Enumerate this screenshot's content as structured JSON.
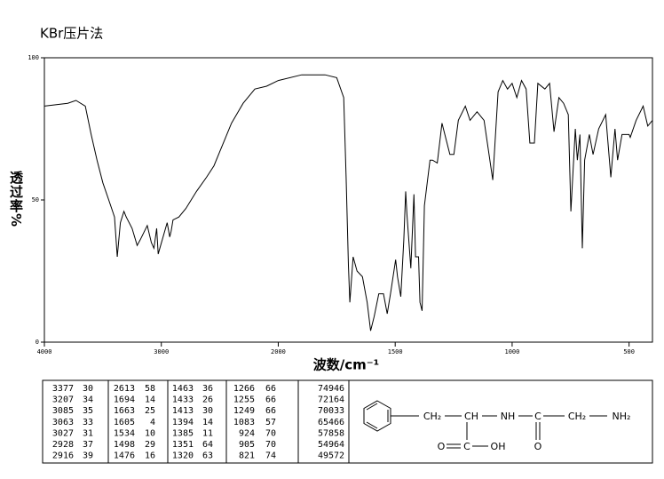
{
  "chart_data": {
    "type": "line",
    "title": "KBr压片法",
    "x_label": "波数/cm⁻¹",
    "y_label": "透过率%",
    "color": "#000000",
    "xlim": [
      4000,
      400
    ],
    "xticks": [
      4000,
      3000,
      2000,
      1500,
      1000,
      500
    ],
    "ylim": [
      0,
      100
    ],
    "yticks": [
      0,
      50,
      100
    ],
    "x": [
      4000,
      3800,
      3730,
      3650,
      3600,
      3550,
      3500,
      3450,
      3400,
      3377,
      3350,
      3320,
      3300,
      3250,
      3207,
      3180,
      3120,
      3085,
      3063,
      3040,
      3027,
      2950,
      2928,
      2916,
      2900,
      2850,
      2790,
      2700,
      2613,
      2550,
      2500,
      2400,
      2300,
      2200,
      2100,
      2000,
      1900,
      1800,
      1750,
      1720,
      1710,
      1700,
      1694,
      1680,
      1663,
      1640,
      1620,
      1605,
      1590,
      1570,
      1550,
      1534,
      1520,
      1498,
      1490,
      1476,
      1463,
      1455,
      1450,
      1433,
      1420,
      1413,
      1400,
      1394,
      1385,
      1375,
      1351,
      1340,
      1320,
      1300,
      1266,
      1255,
      1249,
      1230,
      1200,
      1180,
      1150,
      1120,
      1083,
      1060,
      1040,
      1020,
      1000,
      980,
      960,
      940,
      924,
      905,
      890,
      860,
      840,
      821,
      800,
      780,
      760,
      749,
      730,
      721,
      710,
      700,
      690,
      670,
      654,
      630,
      600,
      578,
      560,
      549,
      530,
      500,
      495,
      470,
      440,
      420,
      400
    ],
    "values": [
      83,
      84,
      85,
      83,
      73,
      64,
      56,
      50,
      44,
      30,
      42,
      46,
      44,
      40,
      34,
      36,
      41,
      35,
      33,
      40,
      31,
      42,
      37,
      39,
      43,
      44,
      47,
      53,
      58,
      62,
      67,
      77,
      84,
      89,
      90,
      92,
      94,
      94,
      93,
      86,
      58,
      27,
      14,
      30,
      25,
      23,
      14,
      4,
      9,
      17,
      17,
      10,
      17,
      29,
      23,
      16,
      36,
      53,
      45,
      26,
      52,
      30,
      30,
      14,
      11,
      48,
      64,
      64,
      63,
      77,
      66,
      66,
      66,
      78,
      83,
      78,
      81,
      78,
      57,
      88,
      92,
      89,
      91,
      86,
      92,
      89,
      70,
      70,
      91,
      89,
      91,
      74,
      86,
      84,
      80,
      46,
      75,
      64,
      73,
      33,
      64,
      73,
      66,
      75,
      80,
      58,
      75,
      64,
      73,
      73,
      72,
      78,
      83,
      76,
      78
    ],
    "peak_table": [
      [
        [
          3377,
          30
        ],
        [
          3207,
          34
        ],
        [
          3085,
          35
        ],
        [
          3063,
          33
        ],
        [
          3027,
          31
        ],
        [
          2928,
          37
        ],
        [
          2916,
          39
        ]
      ],
      [
        [
          2613,
          58
        ],
        [
          1694,
          14
        ],
        [
          1663,
          25
        ],
        [
          1605,
          4
        ],
        [
          1534,
          10
        ],
        [
          1498,
          29
        ],
        [
          1476,
          16
        ]
      ],
      [
        [
          1463,
          36
        ],
        [
          1433,
          26
        ],
        [
          1413,
          30
        ],
        [
          1394,
          14
        ],
        [
          1385,
          11
        ],
        [
          1351,
          64
        ],
        [
          1320,
          63
        ]
      ],
      [
        [
          1266,
          66
        ],
        [
          1255,
          66
        ],
        [
          1249,
          66
        ],
        [
          1083,
          57
        ],
        [
          924,
          70
        ],
        [
          905,
          70
        ],
        [
          821,
          74
        ]
      ],
      [
        [
          749,
          46
        ],
        [
          721,
          64
        ],
        [
          700,
          33
        ],
        [
          654,
          66
        ],
        [
          578,
          58
        ],
        [
          549,
          64
        ],
        [
          495,
          72
        ]
      ]
    ],
    "structure": {
      "labels": [
        "CH₂",
        "CH",
        "NH",
        "C",
        "CH₂",
        "NH₂",
        "O",
        "C",
        "OH",
        "O"
      ]
    }
  }
}
